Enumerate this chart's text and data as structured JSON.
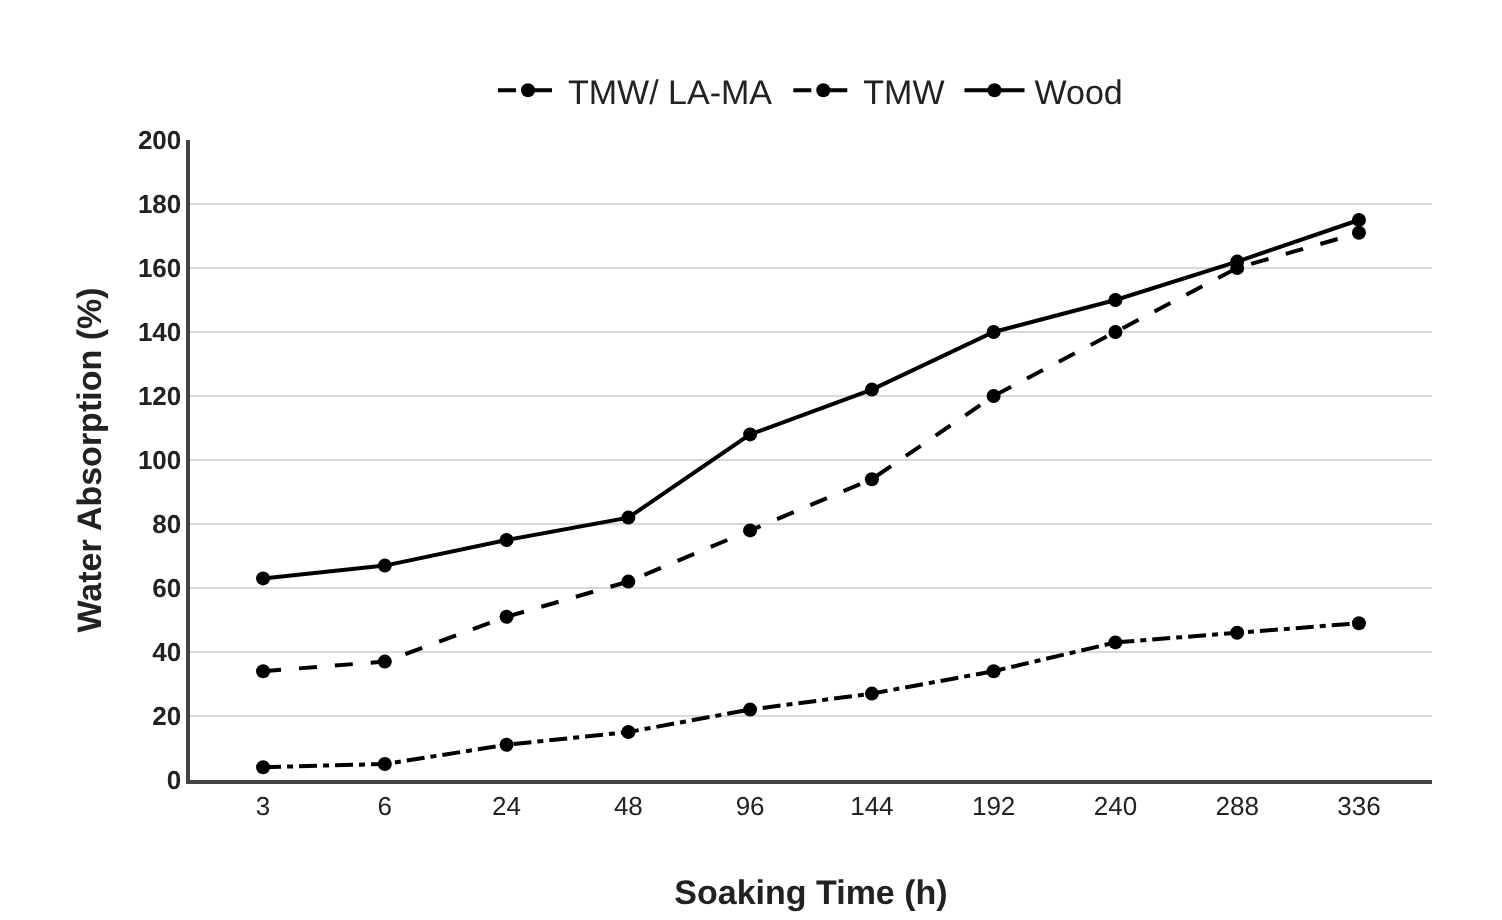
{
  "chart_data": {
    "type": "line",
    "xlabel": "Soaking Time (h)",
    "ylabel": "Water Absorption (%)",
    "categories": [
      "3",
      "6",
      "24",
      "48",
      "96",
      "144",
      "192",
      "240",
      "288",
      "336"
    ],
    "series": [
      {
        "name": "TMW/ LA-MA",
        "color": "#000000",
        "line_style": "dashdot",
        "values": [
          4,
          5,
          11,
          15,
          22,
          27,
          34,
          43,
          46,
          49
        ]
      },
      {
        "name": "TMW",
        "color": "#000000",
        "line_style": "dashed",
        "values": [
          34,
          37,
          51,
          62,
          78,
          94,
          120,
          140,
          160,
          171
        ]
      },
      {
        "name": "Wood",
        "color": "#000000",
        "line_style": "solid",
        "values": [
          63,
          67,
          75,
          82,
          108,
          122,
          140,
          150,
          162,
          175
        ]
      }
    ],
    "ylim": [
      0,
      200
    ],
    "yticks": [
      0,
      20,
      40,
      60,
      80,
      100,
      120,
      140,
      160,
      180,
      200
    ],
    "grid": "y",
    "legend": "top",
    "marker": "circle"
  }
}
